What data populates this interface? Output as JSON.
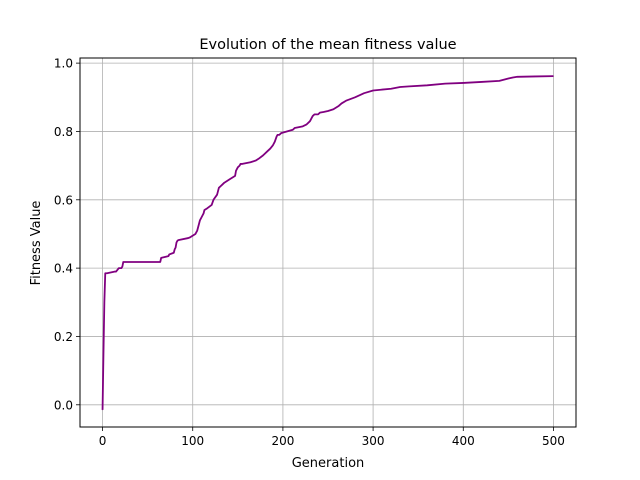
{
  "chart_data": {
    "type": "line",
    "title": "Evolution of the mean fitness value",
    "xlabel": "Generation",
    "ylabel": "Fitness Value",
    "xlim": [
      -25,
      525
    ],
    "ylim": [
      -0.065,
      1.015
    ],
    "xticks": [
      0,
      100,
      200,
      300,
      400,
      500
    ],
    "yticks": [
      0.0,
      0.2,
      0.4,
      0.6,
      0.8,
      1.0
    ],
    "xtick_labels": [
      "0",
      "100",
      "200",
      "300",
      "400",
      "500"
    ],
    "ytick_labels": [
      "0.0",
      "0.2",
      "0.4",
      "0.6",
      "0.8",
      "1.0"
    ],
    "grid": true,
    "line_color": "#800080",
    "series": [
      {
        "x": [
          0,
          1,
          2,
          3,
          5,
          14,
          15,
          18,
          21,
          22,
          23,
          64,
          65,
          73,
          74,
          79,
          80,
          81,
          82,
          83,
          84,
          95,
          97,
          100,
          103,
          105,
          107,
          108,
          110,
          112,
          113,
          116,
          121,
          123,
          127,
          129,
          131,
          133,
          135,
          141,
          147,
          148,
          150,
          152,
          153,
          155,
          164,
          170,
          173,
          178,
          182,
          186,
          189,
          191,
          193,
          194,
          196,
          198,
          211,
          213,
          222,
          226,
          230,
          233,
          235,
          237,
          239,
          241,
          245,
          250,
          256,
          262,
          265,
          270,
          280,
          290,
          300,
          320,
          330,
          340,
          360,
          380,
          400,
          420,
          440,
          450,
          455,
          460,
          480,
          500
        ],
        "y": [
          -0.015,
          0.15,
          0.3,
          0.385,
          0.385,
          0.39,
          0.39,
          0.4,
          0.4,
          0.405,
          0.418,
          0.418,
          0.43,
          0.435,
          0.44,
          0.445,
          0.455,
          0.46,
          0.475,
          0.48,
          0.482,
          0.488,
          0.49,
          0.495,
          0.5,
          0.51,
          0.53,
          0.54,
          0.55,
          0.56,
          0.57,
          0.575,
          0.585,
          0.6,
          0.615,
          0.635,
          0.64,
          0.645,
          0.65,
          0.66,
          0.67,
          0.685,
          0.695,
          0.7,
          0.705,
          0.705,
          0.71,
          0.715,
          0.72,
          0.73,
          0.74,
          0.75,
          0.76,
          0.77,
          0.785,
          0.79,
          0.79,
          0.795,
          0.805,
          0.81,
          0.815,
          0.82,
          0.83,
          0.845,
          0.85,
          0.85,
          0.85,
          0.855,
          0.857,
          0.86,
          0.865,
          0.875,
          0.882,
          0.89,
          0.9,
          0.912,
          0.92,
          0.925,
          0.93,
          0.932,
          0.935,
          0.94,
          0.942,
          0.945,
          0.948,
          0.955,
          0.958,
          0.96,
          0.961,
          0.962
        ]
      }
    ]
  }
}
